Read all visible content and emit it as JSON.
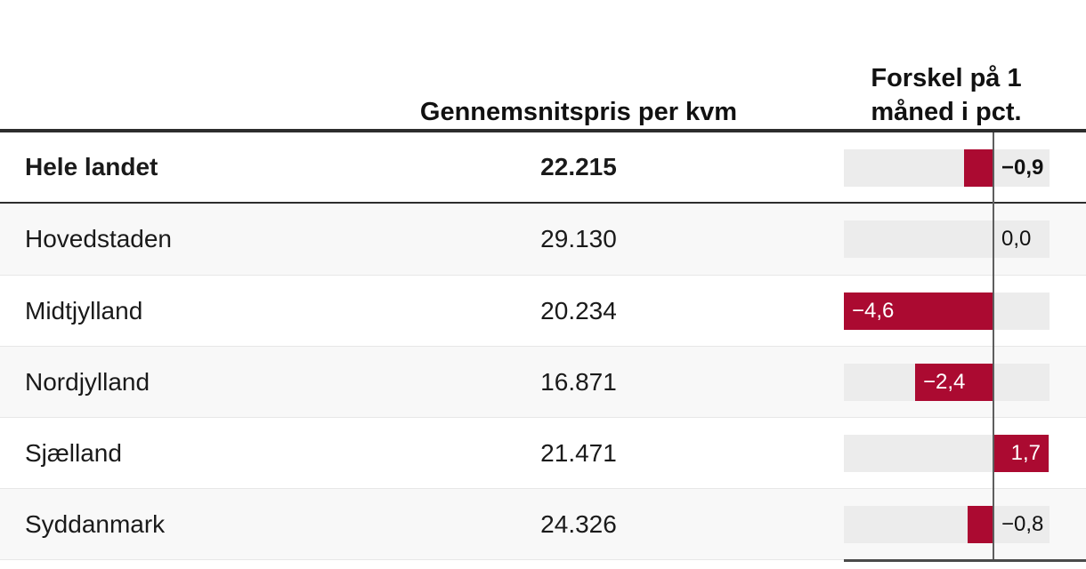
{
  "header": {
    "price_col": "Gennemsnitspris per kvm",
    "diff_col": "Forskel på 1 måned i pct."
  },
  "rows": [
    {
      "region": "Hele landet",
      "price": "22.215",
      "diff_label": "−0,9",
      "diff": -0.9,
      "emphasis": true
    },
    {
      "region": "Hovedstaden",
      "price": "29.130",
      "diff_label": "0,0",
      "diff": 0.0,
      "emphasis": false
    },
    {
      "region": "Midtjylland",
      "price": "20.234",
      "diff_label": "−4,6",
      "diff": -4.6,
      "emphasis": false
    },
    {
      "region": "Nordjylland",
      "price": "16.871",
      "diff_label": "−2,4",
      "diff": -2.4,
      "emphasis": false
    },
    {
      "region": "Sjælland",
      "price": "21.471",
      "diff_label": "1,7",
      "diff": 1.7,
      "emphasis": false
    },
    {
      "region": "Syddanmark",
      "price": "24.326",
      "diff_label": "−0,8",
      "diff": -0.8,
      "emphasis": false
    }
  ],
  "colors": {
    "bar": "#ab0a31",
    "bar_track": "#ececec",
    "alt_row": "#f8f8f8",
    "zero_axis": "#5e5e5e",
    "rule": "#2d2d2d"
  },
  "chart_data": {
    "type": "bar",
    "orientation": "horizontal",
    "categories": [
      "Hele landet",
      "Hovedstaden",
      "Midtjylland",
      "Nordjylland",
      "Sjælland",
      "Syddanmark"
    ],
    "series": [
      {
        "name": "Gennemsnitspris per kvm",
        "values": [
          22215,
          29130,
          20234,
          16871,
          21471,
          24326
        ]
      },
      {
        "name": "Forskel på 1 måned i pct.",
        "values": [
          -0.9,
          0.0,
          -4.6,
          -2.4,
          1.7,
          -0.8
        ]
      }
    ],
    "title": "",
    "xlabel": "Forskel på 1 måned i pct.",
    "ylabel": "",
    "xlim": [
      -4.6,
      1.7
    ],
    "grid": false,
    "legend_position": "none",
    "bar_color": "#ab0a31",
    "zero_line": true,
    "data_labels": [
      "−0,9",
      "0,0",
      "−4,6",
      "−2,4",
      "1,7",
      "−0,8"
    ]
  }
}
